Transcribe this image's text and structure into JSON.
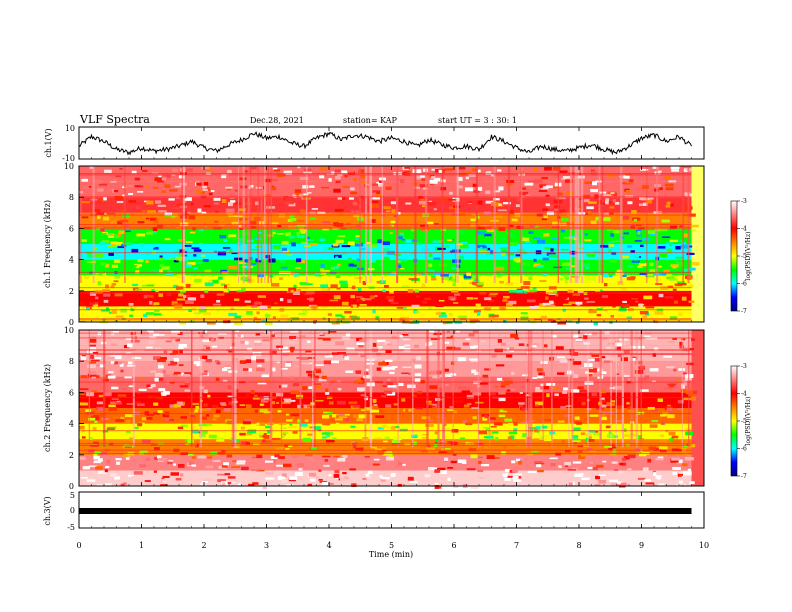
{
  "header": {
    "title": "VLF Spectra",
    "date": "Dec.28, 2021",
    "station": "station= KAP",
    "start_ut": "start UT =  3 : 30: 1"
  },
  "x_axis": {
    "label": "Time (min)",
    "ticks": [
      "0",
      "1",
      "2",
      "3",
      "4",
      "5",
      "6",
      "7",
      "8",
      "9",
      "10"
    ]
  },
  "colorbar": {
    "label": "log(PSD)(V²/Hz)",
    "ticks": [
      "-3",
      "-4",
      "-5",
      "-6",
      "-7"
    ],
    "colors": [
      "#000080",
      "#0000ff",
      "#00ffff",
      "#00ff00",
      "#ffff00",
      "#ff8000",
      "#ff0000",
      "#ff8080",
      "#ffffff"
    ]
  },
  "chart_data": [
    {
      "type": "line",
      "panel": "ch1-waveform",
      "ylabel": "ch.1(V)",
      "yticks": [
        "10",
        "-10"
      ],
      "ylim": [
        -10,
        10
      ],
      "xlim": [
        0,
        9.8
      ],
      "x": [
        0,
        0.2,
        0.4,
        0.6,
        0.8,
        1.0,
        1.2,
        1.4,
        1.6,
        1.8,
        2.0,
        2.2,
        2.4,
        2.6,
        2.8,
        3.0,
        3.2,
        3.4,
        3.6,
        3.8,
        4.0,
        4.2,
        4.4,
        4.6,
        4.8,
        5.0,
        5.2,
        5.4,
        5.6,
        5.8,
        6.0,
        6.2,
        6.4,
        6.6,
        6.8,
        7.0,
        7.2,
        7.4,
        7.6,
        7.8,
        8.0,
        8.2,
        8.4,
        8.6,
        8.8,
        9.0,
        9.2,
        9.4,
        9.6,
        9.8
      ],
      "y": [
        -2,
        4,
        1,
        -4,
        -6,
        -3,
        -5,
        -4,
        -2,
        1,
        -3,
        -5,
        -1,
        2,
        6,
        3,
        4,
        0,
        -2,
        3,
        6,
        2,
        5,
        4,
        1,
        3,
        1,
        -2,
        2,
        -1,
        -3,
        -2,
        -4,
        4,
        1,
        -3,
        -6,
        -2,
        -4,
        -5,
        -3,
        -1,
        -4,
        -6,
        -2,
        3,
        5,
        1,
        4,
        -2
      ]
    },
    {
      "type": "heatmap",
      "panel": "ch1-spectrogram",
      "ylabel": "ch.1 Frequency (kHz)",
      "yticks": [
        "0",
        "2",
        "4",
        "6",
        "8",
        "10"
      ],
      "ylim": [
        0,
        10
      ],
      "xlim": [
        0,
        9.8
      ],
      "freq_bands_khz": [
        0,
        1,
        2,
        3,
        4,
        5,
        6,
        7,
        8,
        9,
        10
      ],
      "log_psd": [
        -5.0,
        -4.0,
        -5.0,
        -5.5,
        -6.0,
        -5.5,
        -4.5,
        -3.8,
        -3.6,
        -3.6
      ]
    },
    {
      "type": "heatmap",
      "panel": "ch2-spectrogram",
      "ylabel": "ch.2 Frequency (kHz)",
      "yticks": [
        "0",
        "2",
        "4",
        "6",
        "8",
        "10"
      ],
      "ylim": [
        0,
        10
      ],
      "xlim": [
        0,
        9.8
      ],
      "freq_bands_khz": [
        0,
        1,
        2,
        3,
        4,
        5,
        6,
        7,
        8,
        9,
        10
      ],
      "log_psd": [
        -3.2,
        -3.5,
        -4.5,
        -5.0,
        -4.4,
        -4.0,
        -3.6,
        -3.4,
        -3.3,
        -3.3
      ]
    },
    {
      "type": "line",
      "panel": "ch3-waveform",
      "ylabel": "ch.3(V)",
      "yticks": [
        "5",
        "0",
        "-5"
      ],
      "ylim": [
        -5,
        5
      ],
      "xlim": [
        0,
        9.8
      ],
      "x": [
        0,
        9.8
      ],
      "y": [
        -0.5,
        -0.5
      ]
    }
  ]
}
